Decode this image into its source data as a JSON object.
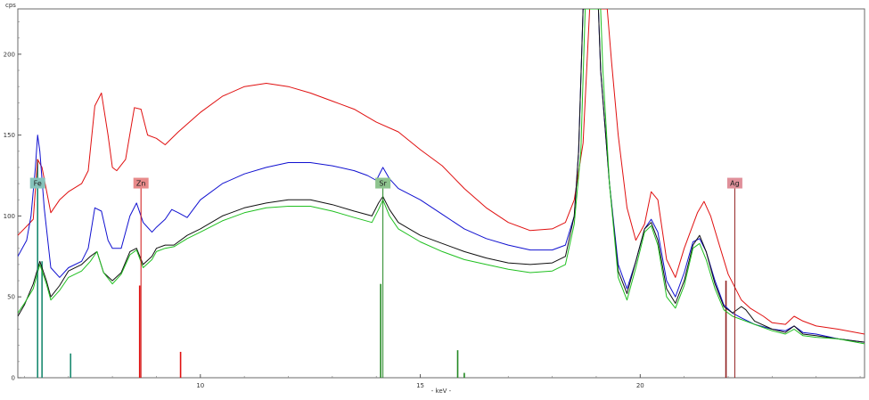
{
  "chart_data": {
    "type": "line",
    "ylabel": "cps",
    "xlabel": "- keV -",
    "xlim": [
      5.85,
      25.1
    ],
    "ylim": [
      0,
      228
    ],
    "x_ticks": [
      10,
      15,
      20
    ],
    "y_ticks": [
      0,
      50,
      100,
      150,
      200
    ],
    "grid": false,
    "legend": "none",
    "series": [
      {
        "color": "#e01010",
        "points": [
          [
            5.85,
            88
          ],
          [
            6.1,
            95
          ],
          [
            6.2,
            98
          ],
          [
            6.3,
            135
          ],
          [
            6.4,
            130
          ],
          [
            6.6,
            102
          ],
          [
            6.8,
            110
          ],
          [
            7.0,
            115
          ],
          [
            7.3,
            120
          ],
          [
            7.45,
            128
          ],
          [
            7.6,
            168
          ],
          [
            7.75,
            176
          ],
          [
            7.9,
            150
          ],
          [
            8.0,
            130
          ],
          [
            8.1,
            128
          ],
          [
            8.3,
            135
          ],
          [
            8.5,
            167
          ],
          [
            8.65,
            166
          ],
          [
            8.8,
            150
          ],
          [
            9.0,
            148
          ],
          [
            9.2,
            144
          ],
          [
            9.5,
            152
          ],
          [
            10.0,
            164
          ],
          [
            10.5,
            174
          ],
          [
            11.0,
            180
          ],
          [
            11.5,
            182
          ],
          [
            12.0,
            180
          ],
          [
            12.5,
            176
          ],
          [
            13.0,
            171
          ],
          [
            13.5,
            166
          ],
          [
            14.0,
            158
          ],
          [
            14.5,
            152
          ],
          [
            15.0,
            141
          ],
          [
            15.5,
            131
          ],
          [
            16.0,
            117
          ],
          [
            16.5,
            105
          ],
          [
            17.0,
            96
          ],
          [
            17.5,
            91
          ],
          [
            18.0,
            92
          ],
          [
            18.3,
            96
          ],
          [
            18.5,
            110
          ],
          [
            18.7,
            145
          ],
          [
            18.85,
            228
          ],
          [
            19.15,
            228
          ],
          [
            19.25,
            228
          ],
          [
            19.35,
            195
          ],
          [
            19.5,
            150
          ],
          [
            19.7,
            105
          ],
          [
            19.9,
            85
          ],
          [
            20.1,
            95
          ],
          [
            20.25,
            115
          ],
          [
            20.4,
            110
          ],
          [
            20.6,
            73
          ],
          [
            20.8,
            62
          ],
          [
            21.0,
            80
          ],
          [
            21.3,
            102
          ],
          [
            21.45,
            109
          ],
          [
            21.6,
            100
          ],
          [
            21.8,
            82
          ],
          [
            22.0,
            64
          ],
          [
            22.3,
            48
          ],
          [
            22.5,
            43
          ],
          [
            22.8,
            38
          ],
          [
            23.0,
            34
          ],
          [
            23.3,
            33
          ],
          [
            23.5,
            38
          ],
          [
            23.7,
            35
          ],
          [
            24.0,
            32
          ],
          [
            24.5,
            30
          ],
          [
            25.1,
            27
          ]
        ]
      },
      {
        "color": "#1010d0",
        "points": [
          [
            5.85,
            75
          ],
          [
            6.05,
            85
          ],
          [
            6.15,
            100
          ],
          [
            6.25,
            130
          ],
          [
            6.3,
            150
          ],
          [
            6.35,
            140
          ],
          [
            6.45,
            105
          ],
          [
            6.6,
            68
          ],
          [
            6.8,
            62
          ],
          [
            7.0,
            68
          ],
          [
            7.3,
            72
          ],
          [
            7.45,
            80
          ],
          [
            7.6,
            105
          ],
          [
            7.75,
            103
          ],
          [
            7.9,
            85
          ],
          [
            8.0,
            80
          ],
          [
            8.2,
            80
          ],
          [
            8.4,
            100
          ],
          [
            8.55,
            108
          ],
          [
            8.7,
            96
          ],
          [
            8.9,
            90
          ],
          [
            9.0,
            93
          ],
          [
            9.2,
            98
          ],
          [
            9.35,
            104
          ],
          [
            9.5,
            102
          ],
          [
            9.7,
            99
          ],
          [
            10.0,
            110
          ],
          [
            10.5,
            120
          ],
          [
            11.0,
            126
          ],
          [
            11.5,
            130
          ],
          [
            12.0,
            133
          ],
          [
            12.5,
            133
          ],
          [
            13.0,
            131
          ],
          [
            13.5,
            128
          ],
          [
            13.8,
            125
          ],
          [
            14.0,
            122
          ],
          [
            14.15,
            130
          ],
          [
            14.3,
            123
          ],
          [
            14.5,
            117
          ],
          [
            15.0,
            110
          ],
          [
            15.5,
            101
          ],
          [
            16.0,
            92
          ],
          [
            16.5,
            86
          ],
          [
            17.0,
            82
          ],
          [
            17.5,
            79
          ],
          [
            18.0,
            79
          ],
          [
            18.3,
            82
          ],
          [
            18.5,
            100
          ],
          [
            18.6,
            140
          ],
          [
            18.7,
            228
          ],
          [
            19.0,
            228
          ],
          [
            19.05,
            228
          ],
          [
            19.1,
            190
          ],
          [
            19.3,
            120
          ],
          [
            19.5,
            70
          ],
          [
            19.7,
            55
          ],
          [
            19.9,
            72
          ],
          [
            20.1,
            92
          ],
          [
            20.25,
            98
          ],
          [
            20.4,
            90
          ],
          [
            20.6,
            60
          ],
          [
            20.8,
            50
          ],
          [
            21.0,
            65
          ],
          [
            21.2,
            84
          ],
          [
            21.35,
            86
          ],
          [
            21.5,
            78
          ],
          [
            21.7,
            60
          ],
          [
            21.9,
            45
          ],
          [
            22.1,
            40
          ],
          [
            22.3,
            37
          ],
          [
            22.6,
            33
          ],
          [
            23.0,
            30
          ],
          [
            23.3,
            29
          ],
          [
            23.5,
            32
          ],
          [
            23.7,
            28
          ],
          [
            24.0,
            27
          ],
          [
            24.5,
            24
          ],
          [
            25.1,
            22
          ]
        ]
      },
      {
        "color": "#101010",
        "points": [
          [
            5.85,
            38
          ],
          [
            6.0,
            45
          ],
          [
            6.2,
            58
          ],
          [
            6.35,
            72
          ],
          [
            6.5,
            60
          ],
          [
            6.6,
            50
          ],
          [
            6.8,
            57
          ],
          [
            7.0,
            66
          ],
          [
            7.3,
            70
          ],
          [
            7.5,
            75
          ],
          [
            7.65,
            78
          ],
          [
            7.8,
            65
          ],
          [
            8.0,
            60
          ],
          [
            8.2,
            65
          ],
          [
            8.4,
            78
          ],
          [
            8.55,
            80
          ],
          [
            8.7,
            70
          ],
          [
            8.9,
            75
          ],
          [
            9.0,
            80
          ],
          [
            9.2,
            82
          ],
          [
            9.4,
            82
          ],
          [
            9.7,
            88
          ],
          [
            10.0,
            92
          ],
          [
            10.5,
            100
          ],
          [
            11.0,
            105
          ],
          [
            11.5,
            108
          ],
          [
            12.0,
            110
          ],
          [
            12.5,
            110
          ],
          [
            13.0,
            107
          ],
          [
            13.5,
            103
          ],
          [
            13.9,
            100
          ],
          [
            14.05,
            108
          ],
          [
            14.15,
            112
          ],
          [
            14.3,
            104
          ],
          [
            14.5,
            96
          ],
          [
            15.0,
            88
          ],
          [
            15.5,
            83
          ],
          [
            16.0,
            78
          ],
          [
            16.5,
            74
          ],
          [
            17.0,
            71
          ],
          [
            17.5,
            70
          ],
          [
            18.0,
            71
          ],
          [
            18.3,
            75
          ],
          [
            18.5,
            100
          ],
          [
            18.6,
            140
          ],
          [
            18.7,
            228
          ],
          [
            19.0,
            228
          ],
          [
            19.05,
            228
          ],
          [
            19.1,
            190
          ],
          [
            19.3,
            120
          ],
          [
            19.5,
            66
          ],
          [
            19.7,
            52
          ],
          [
            19.9,
            72
          ],
          [
            20.1,
            92
          ],
          [
            20.25,
            96
          ],
          [
            20.4,
            85
          ],
          [
            20.6,
            55
          ],
          [
            20.8,
            46
          ],
          [
            21.0,
            60
          ],
          [
            21.2,
            82
          ],
          [
            21.35,
            88
          ],
          [
            21.5,
            78
          ],
          [
            21.7,
            58
          ],
          [
            21.9,
            44
          ],
          [
            22.1,
            40
          ],
          [
            22.3,
            44
          ],
          [
            22.4,
            42
          ],
          [
            22.6,
            35
          ],
          [
            23.0,
            30
          ],
          [
            23.3,
            28
          ],
          [
            23.5,
            32
          ],
          [
            23.7,
            27
          ],
          [
            24.0,
            26
          ],
          [
            24.5,
            24
          ],
          [
            25.1,
            22
          ]
        ]
      },
      {
        "color": "#20c020",
        "points": [
          [
            5.85,
            40
          ],
          [
            6.0,
            46
          ],
          [
            6.2,
            55
          ],
          [
            6.35,
            70
          ],
          [
            6.5,
            58
          ],
          [
            6.6,
            48
          ],
          [
            6.8,
            54
          ],
          [
            7.0,
            62
          ],
          [
            7.3,
            66
          ],
          [
            7.5,
            72
          ],
          [
            7.65,
            78
          ],
          [
            7.8,
            65
          ],
          [
            8.0,
            58
          ],
          [
            8.2,
            64
          ],
          [
            8.4,
            76
          ],
          [
            8.55,
            79
          ],
          [
            8.7,
            68
          ],
          [
            8.9,
            73
          ],
          [
            9.0,
            78
          ],
          [
            9.2,
            80
          ],
          [
            9.4,
            81
          ],
          [
            9.7,
            86
          ],
          [
            10.0,
            90
          ],
          [
            10.5,
            97
          ],
          [
            11.0,
            102
          ],
          [
            11.5,
            105
          ],
          [
            12.0,
            106
          ],
          [
            12.5,
            106
          ],
          [
            13.0,
            103
          ],
          [
            13.5,
            99
          ],
          [
            13.9,
            96
          ],
          [
            14.05,
            104
          ],
          [
            14.15,
            110
          ],
          [
            14.3,
            100
          ],
          [
            14.5,
            92
          ],
          [
            15.0,
            84
          ],
          [
            15.5,
            78
          ],
          [
            16.0,
            73
          ],
          [
            16.5,
            70
          ],
          [
            17.0,
            67
          ],
          [
            17.5,
            65
          ],
          [
            18.0,
            66
          ],
          [
            18.3,
            70
          ],
          [
            18.5,
            95
          ],
          [
            18.65,
            140
          ],
          [
            18.75,
            228
          ],
          [
            19.05,
            228
          ],
          [
            19.1,
            228
          ],
          [
            19.15,
            190
          ],
          [
            19.3,
            120
          ],
          [
            19.5,
            62
          ],
          [
            19.7,
            48
          ],
          [
            19.9,
            68
          ],
          [
            20.1,
            90
          ],
          [
            20.25,
            94
          ],
          [
            20.4,
            82
          ],
          [
            20.6,
            50
          ],
          [
            20.8,
            43
          ],
          [
            21.0,
            57
          ],
          [
            21.2,
            80
          ],
          [
            21.35,
            83
          ],
          [
            21.5,
            73
          ],
          [
            21.7,
            55
          ],
          [
            21.9,
            42
          ],
          [
            22.1,
            38
          ],
          [
            22.3,
            36
          ],
          [
            22.6,
            33
          ],
          [
            23.0,
            29
          ],
          [
            23.3,
            27
          ],
          [
            23.5,
            30
          ],
          [
            23.7,
            26
          ],
          [
            24.0,
            25
          ],
          [
            24.5,
            24
          ],
          [
            25.1,
            21
          ]
        ]
      }
    ],
    "line_markers": [
      {
        "x": 6.3,
        "height": 135,
        "color": "#1a8a70",
        "label": "Fe",
        "label_bg": "#86c3bb",
        "label_y": 117
      },
      {
        "x": 8.65,
        "height": 117,
        "color": "#d01010",
        "label": "Zn",
        "label_bg": "#e88a8a",
        "label_y": 117
      },
      {
        "x": 14.15,
        "height": 117,
        "color": "#228822",
        "label": "Sr",
        "label_bg": "#8ec48e",
        "label_y": 117
      },
      {
        "x": 22.15,
        "height": 117,
        "color": "#902020",
        "label": "Ag",
        "label_bg": "#e0909a",
        "label_y": 117
      }
    ],
    "bars": [
      {
        "x": 6.3,
        "value": 135,
        "color": "#1a8a70"
      },
      {
        "x": 6.4,
        "value": 72,
        "color": "#1a8a70"
      },
      {
        "x": 7.05,
        "value": 15,
        "color": "#1a8a70"
      },
      {
        "x": 8.62,
        "value": 57,
        "color": "#e01010"
      },
      {
        "x": 9.55,
        "value": 16,
        "color": "#e01010"
      },
      {
        "x": 14.1,
        "value": 58,
        "color": "#228822"
      },
      {
        "x": 15.85,
        "value": 17,
        "color": "#228822"
      },
      {
        "x": 16.0,
        "value": 3,
        "color": "#228822"
      },
      {
        "x": 21.95,
        "value": 60,
        "color": "#902020"
      }
    ]
  }
}
